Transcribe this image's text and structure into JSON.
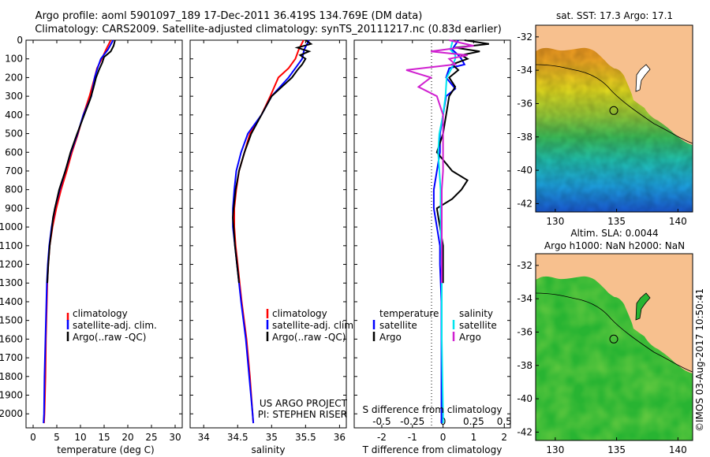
{
  "header": {
    "title_line1": "Argo profile: aoml 5901097_189 17-Dec-2011 36.419S 134.769E (DM data)",
    "title_line2": "Climatology: CARS2009. Satellite-adjusted climatology: synTS_20111217.nc (0.83d earlier)"
  },
  "colors": {
    "climatology": "#ff0000",
    "satellite": "#0000ff",
    "argo": "#000000",
    "salinity_satellite": "#00e5ee",
    "salinity_argo": "#d020d0",
    "land": "#f7c08e"
  },
  "chart_data": [
    {
      "id": "temperature",
      "type": "line",
      "xlabel": "temperature (deg C)",
      "xlim": [
        -1.5,
        31.5
      ],
      "ylim": [
        2075,
        0
      ],
      "xticks": [
        0,
        5,
        10,
        15,
        20,
        25,
        30
      ],
      "yticks": [
        0,
        100,
        200,
        300,
        400,
        500,
        600,
        700,
        800,
        900,
        1000,
        1100,
        1200,
        1300,
        1400,
        1500,
        1600,
        1700,
        1800,
        1900,
        2000
      ],
      "legend": [
        "climatology",
        "satellite-adj. clim.",
        "Argo(..raw -QC)"
      ],
      "series": [
        {
          "name": "climatology",
          "depth": [
            0,
            50,
            100,
            150,
            200,
            300,
            400,
            500,
            600,
            700,
            800,
            900,
            1000,
            1100,
            1200,
            1300,
            1400,
            1600,
            1800,
            2000,
            2050
          ],
          "values": [
            16.4,
            15.4,
            14.5,
            13.5,
            13.0,
            11.9,
            10.6,
            9.5,
            8.2,
            7.1,
            5.9,
            4.9,
            4.1,
            3.5,
            3.2,
            3.0,
            2.9,
            2.7,
            2.6,
            2.4,
            2.3
          ]
        },
        {
          "name": "satellite-adj. clim.",
          "depth": [
            0,
            50,
            100,
            150,
            200,
            300,
            400,
            500,
            600,
            700,
            800,
            900,
            1000,
            1100,
            1200,
            1300,
            1400,
            1600,
            1800,
            2000,
            2050
          ],
          "values": [
            16.9,
            15.8,
            14.3,
            13.6,
            13.0,
            12.3,
            10.6,
            9.4,
            8.0,
            6.8,
            5.6,
            4.6,
            3.9,
            3.4,
            3.1,
            2.9,
            2.8,
            2.6,
            2.4,
            2.3,
            2.2
          ]
        },
        {
          "name": "Argo(..raw -QC)",
          "depth": [
            0,
            30,
            60,
            90,
            120,
            160,
            200,
            260,
            320,
            400,
            500,
            600,
            700,
            800,
            900,
            950,
            1000,
            1100,
            1200,
            1300
          ],
          "values": [
            17.3,
            17.0,
            16.4,
            15.0,
            14.6,
            13.9,
            13.3,
            12.7,
            12.0,
            10.8,
            9.3,
            7.9,
            6.8,
            5.5,
            4.6,
            4.2,
            4.0,
            3.5,
            3.2,
            3.0
          ]
        }
      ]
    },
    {
      "id": "salinity",
      "type": "line",
      "xlabel": "salinity",
      "xlim": [
        33.8,
        36.1
      ],
      "ylim": [
        2075,
        0
      ],
      "xticks": [
        34,
        34.5,
        35,
        35.5,
        36
      ],
      "legend": [
        "climatology",
        "satellite-adj. clim.",
        "Argo(..raw -QC)"
      ],
      "annotation": [
        "US ARGO PROJECT",
        "PI: STEPHEN RISER"
      ],
      "series": [
        {
          "name": "climatology",
          "depth": [
            0,
            50,
            100,
            150,
            200,
            300,
            400,
            500,
            600,
            700,
            800,
            900,
            1000,
            1100,
            1200,
            1300,
            1400,
            1600,
            1800,
            2000,
            2050
          ],
          "values": [
            35.47,
            35.4,
            35.35,
            35.25,
            35.1,
            34.98,
            34.85,
            34.68,
            34.6,
            34.52,
            34.48,
            34.45,
            34.45,
            34.47,
            34.5,
            34.53,
            34.56,
            34.63,
            34.68,
            34.72,
            34.73
          ]
        },
        {
          "name": "satellite-adj. clim.",
          "depth": [
            0,
            50,
            100,
            150,
            200,
            300,
            400,
            500,
            600,
            700,
            800,
            900,
            1000,
            1100,
            1200,
            1300,
            1400,
            1600,
            1800,
            2000,
            2050
          ],
          "values": [
            35.55,
            35.48,
            35.45,
            35.35,
            35.25,
            35.0,
            34.85,
            34.65,
            34.55,
            34.48,
            34.45,
            34.43,
            34.43,
            34.46,
            34.49,
            34.52,
            34.55,
            34.62,
            34.67,
            34.72,
            34.73
          ]
        },
        {
          "name": "Argo(..raw -QC)",
          "depth": [
            0,
            20,
            40,
            60,
            80,
            100,
            130,
            160,
            200,
            250,
            300,
            400,
            500,
            600,
            700,
            800,
            900,
            950,
            1000,
            1100,
            1200,
            1300
          ],
          "values": [
            35.5,
            35.58,
            35.38,
            35.55,
            35.42,
            35.5,
            35.45,
            35.38,
            35.3,
            35.15,
            35.0,
            34.85,
            34.7,
            34.6,
            34.52,
            34.47,
            34.44,
            34.43,
            34.44,
            34.46,
            34.49,
            34.52
          ]
        }
      ]
    },
    {
      "id": "difference",
      "type": "line",
      "xlabel": "T difference from climatology",
      "x2label": "S difference from climatology",
      "xlim": [
        -2.9,
        2.2
      ],
      "ylim": [
        2075,
        0
      ],
      "xticks": [
        -2,
        -1,
        0,
        1,
        2
      ],
      "xticks_s": [
        -0.5,
        -0.25,
        0,
        0.25,
        0.5
      ],
      "legend_t": [
        "temperature",
        "satellite",
        "Argo"
      ],
      "legend_s": [
        "salinity",
        "satellite",
        "Argo"
      ],
      "series": [
        {
          "name": "T satellite",
          "depth": [
            0,
            50,
            80,
            100,
            130,
            150,
            200,
            260,
            300,
            400,
            500,
            600,
            700,
            800,
            900,
            1000,
            1100,
            1200,
            1400,
            1600,
            2000,
            2050
          ],
          "values": [
            0.5,
            0.3,
            0.5,
            0.6,
            0.7,
            0.2,
            0.1,
            0.4,
            0.1,
            0.0,
            -0.1,
            -0.1,
            -0.2,
            -0.3,
            -0.3,
            -0.2,
            -0.1,
            -0.1,
            -0.05,
            -0.05,
            -0.05,
            -0.05
          ]
        },
        {
          "name": "T Argo",
          "depth": [
            0,
            20,
            40,
            60,
            80,
            100,
            130,
            160,
            200,
            250,
            300,
            400,
            500,
            600,
            700,
            750,
            800,
            850,
            900,
            1000,
            1100,
            1200,
            1300
          ],
          "values": [
            0.7,
            1.5,
            0.4,
            1.2,
            0.6,
            0.8,
            0.3,
            0.5,
            0.2,
            0.4,
            0.2,
            0.1,
            0.0,
            -0.2,
            0.3,
            0.8,
            0.6,
            0.3,
            -0.2,
            -0.1,
            0.0,
            0.0,
            0.0
          ]
        },
        {
          "name": "S satellite",
          "depth": [
            0,
            50,
            80,
            100,
            150,
            200,
            300,
            400,
            500,
            600,
            800,
            1000,
            1200,
            1400,
            1600,
            2000,
            2050
          ],
          "values": [
            0.08,
            0.06,
            0.1,
            0.1,
            0.07,
            0.03,
            0.02,
            0.0,
            -0.03,
            -0.04,
            -0.02,
            -0.02,
            -0.01,
            -0.01,
            -0.01,
            0.0,
            0.0
          ]
        },
        {
          "name": "S Argo",
          "depth": [
            0,
            30,
            60,
            80,
            100,
            130,
            160,
            200,
            250,
            300,
            400,
            500,
            600,
            700,
            800,
            900,
            1000,
            1100,
            1200,
            1300
          ],
          "values": [
            0.05,
            0.25,
            -0.1,
            0.2,
            0.05,
            0.1,
            -0.3,
            -0.1,
            -0.2,
            -0.05,
            0.0,
            0.0,
            0.0,
            0.0,
            -0.01,
            -0.01,
            -0.01,
            -0.01,
            -0.01,
            -0.01
          ]
        }
      ]
    },
    {
      "id": "sst-map",
      "type": "heatmap",
      "title": "sat. SST: 17.3 Argo: 17.1",
      "xticks": [
        130,
        135,
        140
      ],
      "yticks": [
        -32,
        -34,
        -36,
        -38,
        -40,
        -42
      ],
      "xlim": [
        128.4,
        141.2
      ],
      "ylim": [
        -42.5,
        -31.3
      ],
      "argo_position": [
        134.769,
        -36.419
      ]
    },
    {
      "id": "sla-map",
      "type": "heatmap",
      "title": "Altim. SLA: 0.0044",
      "subtitle": "Argo h1000: NaN h2000: NaN",
      "xticks": [
        130,
        135,
        140
      ],
      "yticks": [
        -32,
        -34,
        -36,
        -38,
        -40,
        -42
      ],
      "xlim": [
        128.4,
        141.2
      ],
      "ylim": [
        -42.5,
        -31.3
      ],
      "argo_position": [
        134.769,
        -36.419
      ]
    }
  ],
  "credit": "©IMOS 03-Aug-2017 10:50:41"
}
